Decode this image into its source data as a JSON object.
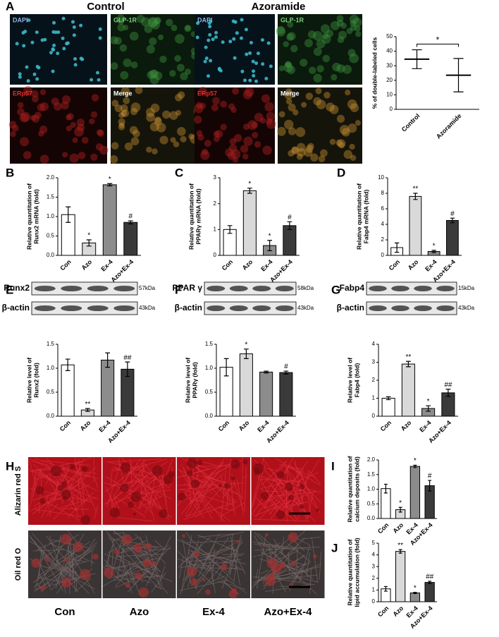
{
  "panel_labels": [
    "A",
    "B",
    "C",
    "D",
    "E",
    "F",
    "G",
    "H",
    "I",
    "J"
  ],
  "panel_a": {
    "headers": [
      "Control",
      "Azoramide"
    ],
    "channels": [
      "DAPI",
      "GLP-1R",
      "ERp57",
      "Merge"
    ]
  },
  "blots": [
    {
      "target": "Runx2",
      "target_size": "57kDa",
      "control": "β-actin",
      "control_size": "43kDa"
    },
    {
      "target": "PPAR γ",
      "target_size": "58kDa",
      "control": "β-actin",
      "control_size": "43kDa"
    },
    {
      "target": "Fabp4",
      "target_size": "15kDa",
      "control": "β-actin",
      "control_size": "43kDa"
    }
  ],
  "panel_h": {
    "rows": [
      "Alizarin red S",
      "Oil red O"
    ],
    "columns": [
      "Con",
      "Azo",
      "Ex-4",
      "Azo+Ex-4"
    ]
  },
  "chart_data": [
    {
      "type": "errorbar",
      "ylabel": [
        "% of double-labeled cells"
      ],
      "categories": [
        "Control",
        "Azoramide"
      ],
      "values": [
        34.5,
        23.5
      ],
      "errors": [
        6.5,
        11.5
      ],
      "ylim": [
        0,
        50
      ],
      "yticks": [
        0,
        10,
        20,
        30,
        40,
        50
      ],
      "annotation": "*",
      "color": "#000000"
    },
    {
      "type": "bar",
      "ylabel": [
        "Relative quantitation of",
        "Runx2 mRNA (fold)"
      ],
      "categories": [
        "Con",
        "Azo",
        "Ex-4",
        "Azo+Ex-4"
      ],
      "values": [
        1.05,
        0.32,
        1.82,
        0.85
      ],
      "errors": [
        0.2,
        0.08,
        0.03,
        0.04
      ],
      "annotations": [
        null,
        "*",
        "*",
        "#"
      ],
      "colors": [
        "#ffffff",
        "#d9d9d9",
        "#8c8c8c",
        "#3a3a3a"
      ],
      "ylim": [
        0,
        2
      ],
      "yticks": [
        {
          "value": 0,
          "label": "0.0"
        },
        {
          "value": 0.5,
          "label": "0.5"
        },
        {
          "value": 1,
          "label": "1.0"
        },
        {
          "value": 1.5,
          "label": "1.5"
        },
        {
          "value": 2,
          "label": "2.0"
        }
      ]
    },
    {
      "type": "bar",
      "ylabel": [
        "Relative quantitation of",
        "PPARγ mRNA (fold)"
      ],
      "categories": [
        "Con",
        "Azo",
        "Ex-4",
        "Azo+Ex-4"
      ],
      "values": [
        1.0,
        2.5,
        0.38,
        1.15
      ],
      "errors": [
        0.15,
        0.1,
        0.2,
        0.15
      ],
      "annotations": [
        null,
        "*",
        "*",
        "#"
      ],
      "colors": [
        "#ffffff",
        "#d9d9d9",
        "#8c8c8c",
        "#3a3a3a"
      ],
      "ylim": [
        0,
        3
      ],
      "yticks": [
        0,
        1,
        2,
        3
      ]
    },
    {
      "type": "bar",
      "ylabel": [
        "Relative quantitation of",
        "Fabp4 mRNA (fold)"
      ],
      "categories": [
        "Con",
        "Azo",
        "Ex-4",
        "Azo+Ex-4"
      ],
      "values": [
        1.0,
        7.6,
        0.5,
        4.5
      ],
      "errors": [
        0.6,
        0.4,
        0.15,
        0.3
      ],
      "annotations": [
        null,
        "**",
        "*",
        "#"
      ],
      "colors": [
        "#ffffff",
        "#d9d9d9",
        "#8c8c8c",
        "#3a3a3a"
      ],
      "ylim": [
        0,
        10
      ],
      "yticks": [
        0,
        2,
        4,
        6,
        8,
        10
      ]
    },
    {
      "type": "bar",
      "ylabel": [
        "Relative level of",
        "Runx2 (fold)"
      ],
      "categories": [
        "Con",
        "Azo",
        "Ex-4",
        "Azo+Ex-4"
      ],
      "values": [
        1.07,
        0.13,
        1.17,
        0.98
      ],
      "errors": [
        0.12,
        0.03,
        0.15,
        0.15
      ],
      "annotations": [
        null,
        "**",
        null,
        "##"
      ],
      "colors": [
        "#ffffff",
        "#d9d9d9",
        "#8c8c8c",
        "#3a3a3a"
      ],
      "ylim": [
        0,
        1.5
      ],
      "yticks": [
        {
          "value": 0,
          "label": "0.0"
        },
        {
          "value": 0.5,
          "label": "0.5"
        },
        {
          "value": 1,
          "label": "1.0"
        },
        {
          "value": 1.5,
          "label": "1.5"
        }
      ]
    },
    {
      "type": "bar",
      "ylabel": [
        "Relative level of",
        "PPARγ (fold)"
      ],
      "categories": [
        "Con",
        "Azo",
        "Ex-4",
        "Azo+Ex-4"
      ],
      "values": [
        1.02,
        1.3,
        0.92,
        0.91
      ],
      "errors": [
        0.18,
        0.1,
        0.02,
        0.03
      ],
      "annotations": [
        null,
        "*",
        null,
        "#"
      ],
      "colors": [
        "#ffffff",
        "#d9d9d9",
        "#8c8c8c",
        "#3a3a3a"
      ],
      "ylim": [
        0,
        1.5
      ],
      "yticks": [
        {
          "value": 0,
          "label": "0.0"
        },
        {
          "value": 0.5,
          "label": "0.5"
        },
        {
          "value": 1,
          "label": "1.0"
        },
        {
          "value": 1.5,
          "label": "1.5"
        }
      ]
    },
    {
      "type": "bar",
      "ylabel": [
        "Relative level of",
        "Fabp4 (fold)"
      ],
      "categories": [
        "Con",
        "Azo",
        "Ex-4",
        "Azo+Ex-4"
      ],
      "values": [
        1.0,
        2.9,
        0.43,
        1.3
      ],
      "errors": [
        0.08,
        0.15,
        0.15,
        0.2
      ],
      "annotations": [
        null,
        "**",
        "*",
        "##"
      ],
      "colors": [
        "#ffffff",
        "#d9d9d9",
        "#8c8c8c",
        "#3a3a3a"
      ],
      "ylim": [
        0,
        4
      ],
      "yticks": [
        0,
        1,
        2,
        3,
        4
      ]
    },
    {
      "type": "bar",
      "ylabel": [
        "Relative quantitation of",
        "calcium deposits (fold)"
      ],
      "categories": [
        "Con",
        "Azo",
        "Ex-4",
        "Azo+Ex-4"
      ],
      "values": [
        1.02,
        0.3,
        1.78,
        1.12
      ],
      "errors": [
        0.15,
        0.08,
        0.04,
        0.18
      ],
      "annotations": [
        null,
        "*",
        "*",
        "#"
      ],
      "colors": [
        "#ffffff",
        "#d9d9d9",
        "#8c8c8c",
        "#3a3a3a"
      ],
      "ylim": [
        0,
        2
      ],
      "yticks": [
        {
          "value": 0,
          "label": "0.0"
        },
        {
          "value": 0.5,
          "label": "0.5"
        },
        {
          "value": 1,
          "label": "1.0"
        },
        {
          "value": 1.5,
          "label": "1.5"
        },
        {
          "value": 2,
          "label": "2.0"
        }
      ]
    },
    {
      "type": "bar",
      "ylabel": [
        "Relative quantitation of",
        "lipid accumulation (fold)"
      ],
      "categories": [
        "Con",
        "Azo",
        "Ex-4",
        "Azo+Ex-4"
      ],
      "values": [
        1.1,
        4.3,
        0.75,
        1.65
      ],
      "errors": [
        0.2,
        0.15,
        0.05,
        0.1
      ],
      "annotations": [
        null,
        "**",
        "*",
        "##"
      ],
      "colors": [
        "#ffffff",
        "#d9d9d9",
        "#8c8c8c",
        "#3a3a3a"
      ],
      "ylim": [
        0,
        5
      ],
      "yticks": [
        0,
        1,
        2,
        3,
        4,
        5
      ]
    }
  ]
}
